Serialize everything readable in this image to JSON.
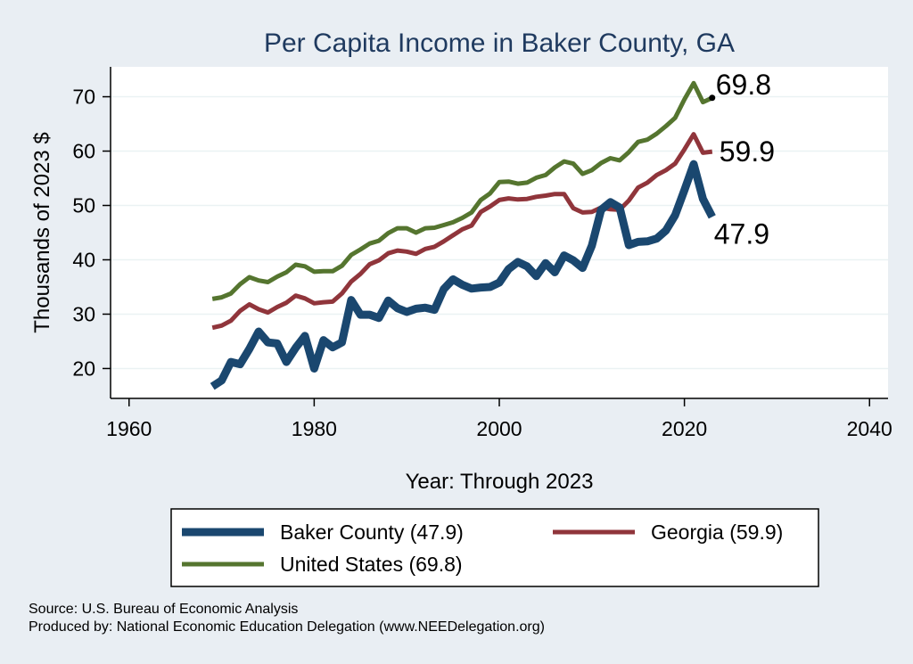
{
  "chart_data": {
    "type": "line",
    "title": "Per Capita Income in Baker County, GA",
    "xlabel": "Year: Through 2023",
    "ylabel": "Thousands of 2023 $",
    "xlim": [
      1958,
      2042
    ],
    "ylim": [
      14.5,
      75.5
    ],
    "xticks": [
      1960,
      1980,
      2000,
      2020,
      2040
    ],
    "yticks": [
      20,
      30,
      40,
      50,
      60,
      70
    ],
    "grid": "horizontal",
    "legend_position": "bottom",
    "x": [
      1969,
      1970,
      1971,
      1972,
      1973,
      1974,
      1975,
      1976,
      1977,
      1978,
      1979,
      1980,
      1981,
      1982,
      1983,
      1984,
      1985,
      1986,
      1987,
      1988,
      1989,
      1990,
      1991,
      1992,
      1993,
      1994,
      1995,
      1996,
      1997,
      1998,
      1999,
      2000,
      2001,
      2002,
      2003,
      2004,
      2005,
      2006,
      2007,
      2008,
      2009,
      2010,
      2011,
      2012,
      2013,
      2014,
      2015,
      2016,
      2017,
      2018,
      2019,
      2020,
      2021,
      2022,
      2023
    ],
    "series": [
      {
        "name": "Baker County",
        "legend": "Baker County (47.9)",
        "color": "#1a476f",
        "width": 9,
        "end_value": "47.9",
        "values": [
          16.7,
          17.8,
          21.2,
          20.8,
          23.6,
          26.8,
          24.8,
          24.6,
          21.2,
          23.8,
          26,
          20,
          25.2,
          23.9,
          24.8,
          32.6,
          29.9,
          29.9,
          29.3,
          32.5,
          31.1,
          30.4,
          31,
          31.2,
          30.8,
          34.6,
          36.4,
          35.4,
          34.7,
          34.9,
          35,
          35.8,
          38.3,
          39.6,
          38.8,
          37,
          39.4,
          37.7,
          40.8,
          39.9,
          38.5,
          42.6,
          49.2,
          50.6,
          49.6,
          42.7,
          43.3,
          43.4,
          43.9,
          45.4,
          48.2,
          52.8,
          57.6,
          51.2,
          47.9
        ]
      },
      {
        "name": "Georgia",
        "legend": "Georgia (59.9)",
        "color": "#90353b",
        "width": 5,
        "end_value": "59.9",
        "values": [
          27.5,
          27.9,
          28.8,
          30.6,
          31.8,
          30.9,
          30.3,
          31.3,
          32.1,
          33.4,
          32.9,
          32,
          32.2,
          32.3,
          33.8,
          36,
          37.4,
          39.2,
          39.9,
          41.2,
          41.7,
          41.5,
          41.1,
          42,
          42.4,
          43.4,
          44.5,
          45.6,
          46.3,
          48.8,
          49.8,
          51,
          51.3,
          51.1,
          51.2,
          51.6,
          51.8,
          52.1,
          52.1,
          49.5,
          48.7,
          48.8,
          49.6,
          49.3,
          49.2,
          50.9,
          53.3,
          54.2,
          55.6,
          56.5,
          57.7,
          60.3,
          63.1,
          59.7,
          59.9
        ]
      },
      {
        "name": "United States",
        "legend": "United States (69.8)",
        "color": "#55752f",
        "width": 5,
        "end_value": "69.8",
        "values": [
          32.8,
          33.1,
          33.8,
          35.5,
          36.8,
          36.2,
          35.9,
          36.9,
          37.7,
          39.1,
          38.8,
          37.8,
          37.9,
          37.9,
          38.9,
          40.9,
          41.9,
          43,
          43.5,
          44.9,
          45.8,
          45.8,
          45,
          45.8,
          45.9,
          46.4,
          46.9,
          47.7,
          48.7,
          51,
          52.2,
          54.3,
          54.4,
          54,
          54.2,
          55.1,
          55.6,
          57,
          58.1,
          57.7,
          55.8,
          56.5,
          57.8,
          58.7,
          58.3,
          59.8,
          61.7,
          62.1,
          63.2,
          64.6,
          66.1,
          69.5,
          72.5,
          69,
          69.8
        ]
      }
    ],
    "source_lines": [
      "Source: U.S. Bureau of Economic Analysis",
      "Produced by: National Economic Education Delegation (www.NEEDelegation.org)"
    ]
  }
}
